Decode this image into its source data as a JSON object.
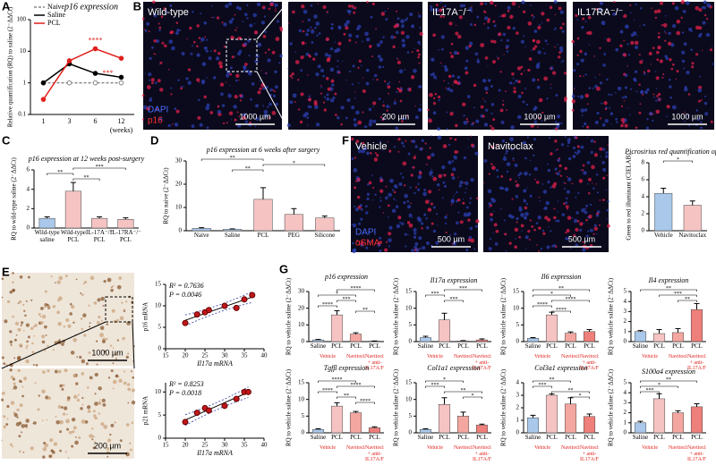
{
  "chart_data": [
    {
      "type": "line",
      "panel": "A",
      "title": "p16 expression",
      "x_label": "(weeks)",
      "y_label": "Relative quantification (RQ) to saline (2⁻ΔΔCt)",
      "categories": [
        "1",
        "3",
        "6",
        "12"
      ],
      "log_y": true,
      "ylim": [
        0.1,
        100
      ],
      "yticks": [
        0.1,
        1,
        10,
        100
      ],
      "legend": "upper left",
      "series": [
        {
          "name": "Naive",
          "color": "#888888",
          "dash": true,
          "values": [
            1,
            1,
            1,
            1
          ]
        },
        {
          "name": "Saline",
          "color": "#000000",
          "values": [
            1,
            4,
            2,
            1.5
          ]
        },
        {
          "name": "PCL",
          "color": "#e0201b",
          "values": [
            0.3,
            5,
            12,
            6
          ]
        }
      ],
      "annotations": [
        "****",
        "***"
      ]
    },
    {
      "type": "bar",
      "panel": "C",
      "title": "p16 expression at 12 weeks post-surgery",
      "y_label": "RQ to wild-type saline (2⁻ΔΔCt)",
      "categories": [
        "Wild-type saline",
        "Wild-type PCL",
        "IL-17A⁻/⁻ PCL",
        "IL-17RA⁻/⁻ PCL"
      ],
      "values": [
        1,
        3.8,
        1,
        0.9
      ],
      "errors": [
        0.15,
        0.9,
        0.15,
        0.15
      ],
      "colors": [
        "#a9c8ea",
        "#f6c3c3",
        "#f6c3c3",
        "#f6c3c3"
      ],
      "ylim": [
        0,
        6
      ],
      "yticks": [
        0,
        2,
        4,
        6
      ],
      "comparisons": [
        {
          "pair": [
            1,
            3
          ],
          "label": "***"
        },
        {
          "pair": [
            0,
            1
          ],
          "label": "**"
        },
        {
          "pair": [
            1,
            2
          ],
          "label": "**"
        }
      ]
    },
    {
      "type": "bar",
      "panel": "D",
      "title": "p16 expression at 6 weeks after surgery",
      "y_label": "RQ to naive (2⁻ΔΔCt)",
      "categories": [
        "Naive",
        "Saline",
        "PCL",
        "PEG",
        "Silicone"
      ],
      "values": [
        1,
        0.6,
        13.5,
        7,
        5.5
      ],
      "errors": [
        0.3,
        0.2,
        5,
        2.5,
        0.8
      ],
      "colors": [
        "#a9c8ea",
        "#a9c8ea",
        "#f6c3c3",
        "#f6c3c3",
        "#f6c3c3"
      ],
      "ylim": [
        0,
        30
      ],
      "yticks": [
        0,
        10,
        20,
        30
      ],
      "comparisons": [
        {
          "pair": [
            0,
            2
          ],
          "label": "**"
        },
        {
          "pair": [
            2,
            4
          ],
          "label": "*"
        },
        {
          "pair": [
            1,
            2
          ],
          "label": "**"
        }
      ]
    },
    {
      "type": "bar",
      "title": "Picrosirius red quantification of fibrosis",
      "y_label": "Green to red illuminant (CIELAB)",
      "categories": [
        "Vehicle",
        "Navitoclax"
      ],
      "values": [
        4.4,
        3.0
      ],
      "errors": [
        0.6,
        0.5
      ],
      "colors": [
        "#a9c8ea",
        "#f6c3c3"
      ],
      "ylim": [
        0,
        8
      ],
      "yticks": [
        0,
        2,
        4,
        6,
        8
      ],
      "comparisons": [
        {
          "pair": [
            0,
            1
          ],
          "label": "*"
        }
      ]
    },
    {
      "type": "scatter",
      "x_label": "Il17a mRNA",
      "y_label": "p16 mRNA",
      "x": [
        20,
        23,
        25,
        26,
        30,
        33,
        35,
        37
      ],
      "y": [
        6,
        8,
        8.5,
        9,
        10,
        9.5,
        11.5,
        12.5
      ],
      "color": "#c0171b",
      "xlim": [
        15,
        40
      ],
      "xticks": [
        15,
        20,
        25,
        30,
        35,
        40
      ],
      "ylim": [
        0,
        15
      ],
      "yticks": [
        0,
        5,
        10,
        15
      ],
      "annotations": [
        "R² = 0.7636",
        "P = 0.0046"
      ]
    },
    {
      "type": "scatter",
      "x_label": "Il17a mRNA",
      "y_label": "p21 mRNA",
      "x": [
        20,
        23,
        25,
        26,
        30,
        33,
        35,
        36
      ],
      "y": [
        3.5,
        5.5,
        6.5,
        6,
        7,
        8.5,
        10,
        10
      ],
      "color": "#c0171b",
      "xlim": [
        15,
        40
      ],
      "xticks": [
        15,
        20,
        25,
        30,
        35,
        40
      ],
      "ylim": [
        0,
        12
      ],
      "yticks": [
        0,
        5,
        10
      ],
      "annotations": [
        "R² = 0.8253",
        "P = 0.0018"
      ]
    },
    {
      "type": "bar",
      "panel": "G",
      "title": "p16 expression",
      "y_label": "RQ to vehicle saline (2⁻ΔΔCt)",
      "categories": [
        "Saline",
        "PCL",
        "PCL",
        "PCL"
      ],
      "group_labels": [
        "Vehicle",
        "Navitoclax",
        "Navitoclax + anti-IL17A/F"
      ],
      "values": [
        1,
        16,
        4.5,
        0.3
      ],
      "errors": [
        0.3,
        2.5,
        0.8,
        0.1
      ],
      "colors": [
        "#a9c8ea",
        "#f6c3c3",
        "#f4a6a0",
        "#ee7f7a"
      ],
      "ylim": [
        0,
        30
      ],
      "yticks": [
        0,
        10,
        20,
        30
      ],
      "comparisons": [
        {
          "pair": [
            1,
            3
          ],
          "label": "****"
        },
        {
          "pair": [
            0,
            2
          ],
          "label": "*"
        },
        {
          "pair": [
            1,
            2
          ],
          "label": "***"
        },
        {
          "pair": [
            0,
            1
          ],
          "label": "****"
        },
        {
          "pair": [
            2,
            3
          ],
          "label": "**"
        }
      ]
    },
    {
      "type": "bar",
      "title": "Il17a expression",
      "y_label": "RQ to vehicle saline (2⁻ΔΔCt)",
      "categories": [
        "Saline",
        "PCL",
        "PCL",
        "PCL"
      ],
      "group_labels": [
        "Vehicle",
        "Navitoclax",
        "Navitoclax + anti-IL17A/F"
      ],
      "values": [
        1.2,
        6.5,
        0.2,
        0.5
      ],
      "errors": [
        0.4,
        2,
        0.1,
        0.3
      ],
      "colors": [
        "#a9c8ea",
        "#f6c3c3",
        "#f4a6a0",
        "#ee7f7a"
      ],
      "ylim": [
        0,
        15
      ],
      "yticks": [
        0,
        5,
        10,
        15
      ],
      "comparisons": [
        {
          "pair": [
            1,
            3
          ],
          "label": "***"
        },
        {
          "pair": [
            0,
            1
          ],
          "label": "***"
        },
        {
          "pair": [
            1,
            2
          ],
          "label": "***"
        }
      ]
    },
    {
      "type": "bar",
      "title": "Il6 expression",
      "y_label": "RQ to vehicle saline (2⁻ΔΔCt)",
      "categories": [
        "Saline",
        "PCL",
        "PCL",
        "PCL"
      ],
      "group_labels": [
        "Vehicle",
        "Navitoclax",
        "Navitoclax + anti-IL17A/F"
      ],
      "values": [
        1,
        8,
        2.5,
        3
      ],
      "errors": [
        0.2,
        0.8,
        0.4,
        0.6
      ],
      "colors": [
        "#a9c8ea",
        "#f6c3c3",
        "#f4a6a0",
        "#ee7f7a"
      ],
      "ylim": [
        0,
        15
      ],
      "yticks": [
        0,
        5,
        10,
        15
      ],
      "comparisons": [
        {
          "pair": [
            0,
            3
          ],
          "label": "**"
        },
        {
          "pair": [
            0,
            2
          ],
          "label": "*"
        },
        {
          "pair": [
            1,
            3
          ],
          "label": "****"
        },
        {
          "pair": [
            0,
            1
          ],
          "label": "****"
        },
        {
          "pair": [
            1,
            2
          ],
          "label": "****"
        }
      ]
    },
    {
      "type": "bar",
      "title": "Il4 expression",
      "y_label": "RQ to vehicle saline (2⁻ΔΔCt)",
      "categories": [
        "Saline",
        "PCL",
        "PCL",
        "PCL"
      ],
      "group_labels": [
        "Vehicle",
        "Navitoclax",
        "Navitoclax + anti-IL17A/F"
      ],
      "values": [
        1,
        0.8,
        0.9,
        3.2
      ],
      "errors": [
        0.1,
        0.4,
        0.4,
        0.6
      ],
      "colors": [
        "#a9c8ea",
        "#f6c3c3",
        "#f4a6a0",
        "#ee7f7a"
      ],
      "ylim": [
        0,
        5
      ],
      "yticks": [
        0,
        1,
        2,
        3,
        4,
        5
      ],
      "comparisons": [
        {
          "pair": [
            0,
            3
          ],
          "label": "**"
        },
        {
          "pair": [
            1,
            3
          ],
          "label": "***"
        },
        {
          "pair": [
            2,
            3
          ],
          "label": "**"
        }
      ]
    },
    {
      "type": "bar",
      "title": "Tgfβ expression",
      "y_label": "RQ to vehicle saline (2⁻ΔΔCt)",
      "categories": [
        "Saline",
        "PCL",
        "PCL",
        "PCL"
      ],
      "group_labels": [
        "Vehicle",
        "Navitoclax",
        "Navitoclax + anti-IL17A/F"
      ],
      "values": [
        1,
        8,
        6,
        1.5
      ],
      "errors": [
        0.2,
        1,
        0.4,
        0.3
      ],
      "colors": [
        "#a9c8ea",
        "#f6c3c3",
        "#f4a6a0",
        "#ee7f7a"
      ],
      "ylim": [
        0,
        15
      ],
      "yticks": [
        0,
        5,
        10,
        15
      ],
      "comparisons": [
        {
          "pair": [
            0,
            2
          ],
          "label": "****"
        },
        {
          "pair": [
            1,
            3
          ],
          "label": "****"
        },
        {
          "pair": [
            0,
            1
          ],
          "label": "****"
        },
        {
          "pair": [
            1,
            2
          ],
          "label": "**"
        },
        {
          "pair": [
            2,
            3
          ],
          "label": "****"
        }
      ]
    },
    {
      "type": "bar",
      "title": "Col1a1 expression",
      "y_label": "RQ to vehicle saline (2⁻ΔΔCt)",
      "categories": [
        "Saline",
        "PCL",
        "PCL",
        "PCL"
      ],
      "group_labels": [
        "Vehicle",
        "Navitoclax",
        "Navitoclax + anti-IL17A/F"
      ],
      "values": [
        1,
        8.5,
        5,
        2.3
      ],
      "errors": [
        0.2,
        2,
        1.2,
        0.3
      ],
      "colors": [
        "#a9c8ea",
        "#f6c3c3",
        "#f4a6a0",
        "#ee7f7a"
      ],
      "ylim": [
        0,
        15
      ],
      "yticks": [
        0,
        5,
        10,
        15
      ],
      "comparisons": [
        {
          "pair": [
            0,
            2
          ],
          "label": "*"
        },
        {
          "pair": [
            0,
            1
          ],
          "label": "***"
        },
        {
          "pair": [
            1,
            3
          ],
          "label": "**"
        },
        {
          "pair": [
            2,
            3
          ],
          "label": "*"
        }
      ]
    },
    {
      "type": "bar",
      "title": "Col3a1 expression",
      "y_label": "RQ to vehicle saline (2⁻ΔΔCt)",
      "categories": [
        "Saline",
        "PCL",
        "PCL",
        "PCL"
      ],
      "group_labels": [
        "Vehicle",
        "Navitoclax",
        "Navitoclax + anti-IL17A/F"
      ],
      "values": [
        1.2,
        3,
        2.3,
        1.3
      ],
      "errors": [
        0.2,
        0.1,
        0.5,
        0.2
      ],
      "colors": [
        "#a9c8ea",
        "#f6c3c3",
        "#f4a6a0",
        "#ee7f7a"
      ],
      "ylim": [
        0,
        4
      ],
      "yticks": [
        0,
        1,
        2,
        3,
        4
      ],
      "comparisons": [
        {
          "pair": [
            0,
            2
          ],
          "label": "**"
        },
        {
          "pair": [
            0,
            1
          ],
          "label": "***"
        },
        {
          "pair": [
            1,
            3
          ],
          "label": "**"
        },
        {
          "pair": [
            2,
            3
          ],
          "label": "*"
        }
      ]
    },
    {
      "type": "bar",
      "title": "S100a4 expression",
      "y_label": "RQ to vehicle saline (2⁻ΔΔCt)",
      "categories": [
        "Saline",
        "PCL",
        "PCL",
        "PCL"
      ],
      "group_labels": [
        "Vehicle",
        "Navitoclax",
        "Navitoclax + anti-IL17A/F"
      ],
      "values": [
        1,
        3.4,
        2,
        2.6
      ],
      "errors": [
        0.15,
        0.5,
        0.2,
        0.3
      ],
      "colors": [
        "#a9c8ea",
        "#f6c3c3",
        "#f4a6a0",
        "#ee7f7a"
      ],
      "ylim": [
        0,
        5
      ],
      "yticks": [
        0,
        1,
        2,
        3,
        4,
        5
      ],
      "comparisons": [
        {
          "pair": [
            0,
            3
          ],
          "label": "**"
        },
        {
          "pair": [
            0,
            2
          ],
          "label": "*"
        },
        {
          "pair": [
            0,
            1
          ],
          "label": "***"
        }
      ]
    }
  ],
  "images": [
    {
      "panel": "B",
      "label": "Wild-type",
      "stains": [
        "DAPI",
        "p16"
      ],
      "scale_bar": "1000 µm"
    },
    {
      "scale_bar": "200 µm"
    },
    {
      "label": "IL17A⁻/⁻",
      "scale_bar": "1000 µm"
    },
    {
      "label": "IL17RA⁻/⁻",
      "scale_bar": "1000 µm"
    },
    {
      "panel": "F",
      "label": "Vehicle",
      "stains": [
        "DAPI",
        "αSMA"
      ],
      "scale_bar": "500 µm"
    },
    {
      "label": "Navitoclax",
      "scale_bar": "500 µm"
    },
    {
      "panel": "E",
      "scale_bar": "1000 µm"
    },
    {
      "scale_bar": "200 µm"
    }
  ]
}
